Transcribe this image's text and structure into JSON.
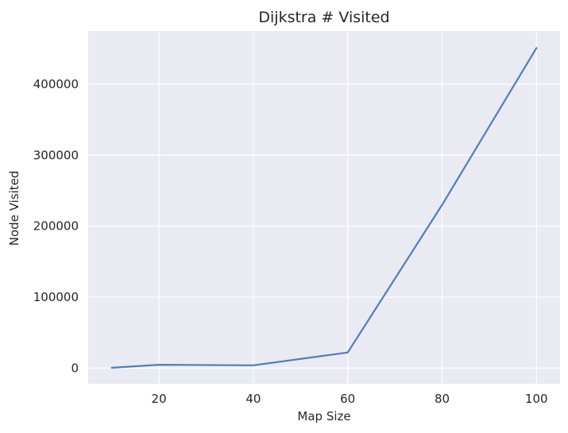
{
  "chart_data": {
    "type": "line",
    "title": "Dijkstra # Visited",
    "xlabel": "Map Size",
    "ylabel": "Node Visited",
    "x": [
      10,
      20,
      40,
      60,
      80,
      100
    ],
    "series": [
      {
        "values": [
          500,
          4800,
          4000,
          22000,
          230000,
          451000
        ]
      }
    ],
    "xlim": [
      5,
      105
    ],
    "ylim": [
      -22000,
      475000
    ],
    "xticks": [
      20,
      40,
      60,
      80,
      100
    ],
    "yticks": [
      0,
      100000,
      200000,
      300000,
      400000
    ],
    "grid": true,
    "legend": "none",
    "colors": {
      "background": "#eaeaf2",
      "grid": "#ffffff",
      "line": "#4c7fbf"
    }
  }
}
